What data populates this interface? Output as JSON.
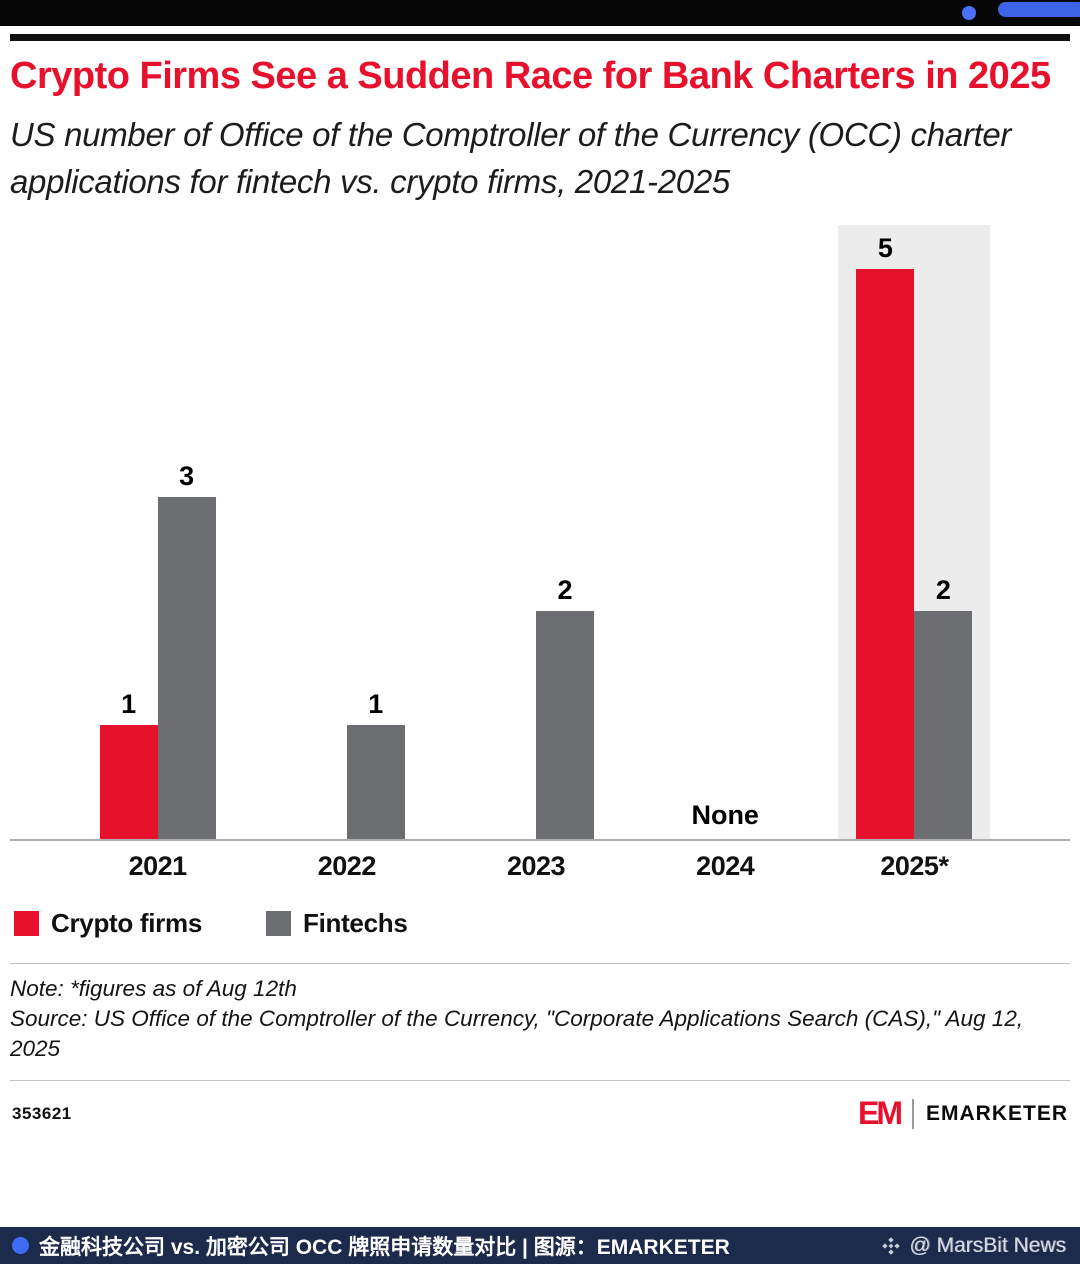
{
  "header": {
    "title": "Crypto Firms See a Sudden Race for Bank Charters in 2025",
    "subtitle": "US number of Office of the Comptroller of the Currency (OCC) charter applications for fintech vs. crypto firms, 2021-2025"
  },
  "chart_data": {
    "type": "bar",
    "categories": [
      "2021",
      "2022",
      "2023",
      "2024",
      "2025*"
    ],
    "series": [
      {
        "name": "Crypto firms",
        "color": "#e8112d",
        "values": [
          1,
          null,
          null,
          null,
          5
        ]
      },
      {
        "name": "Fintechs",
        "color": "#6d6e71",
        "values": [
          3,
          1,
          2,
          null,
          2
        ]
      }
    ],
    "none_text": "None",
    "none_category": "2024",
    "highlight_category": "2025*",
    "ylim": [
      0,
      5
    ],
    "grid": false,
    "legend_position": "bottom-left",
    "title": "Crypto Firms See a Sudden Race for Bank Charters in 2025",
    "xlabel": "",
    "ylabel": ""
  },
  "notes": {
    "note": "Note: *figures as of Aug 12th",
    "source": "Source: US Office of the Comptroller of the Currency, \"Corporate Applications Search (CAS),\" Aug 12, 2025"
  },
  "footer": {
    "chart_id": "353621",
    "brand_mark": "EM",
    "brand_name": "EMARKETER"
  },
  "bottom_bar": {
    "caption": "金融科技公司 vs. 加密公司 OCC 牌照申请数量对比 | 图源：EMARKETER",
    "watermark": "@ MarsBit News",
    "background": "#1c2b4c",
    "accent_dot": "#3f6bf5"
  }
}
